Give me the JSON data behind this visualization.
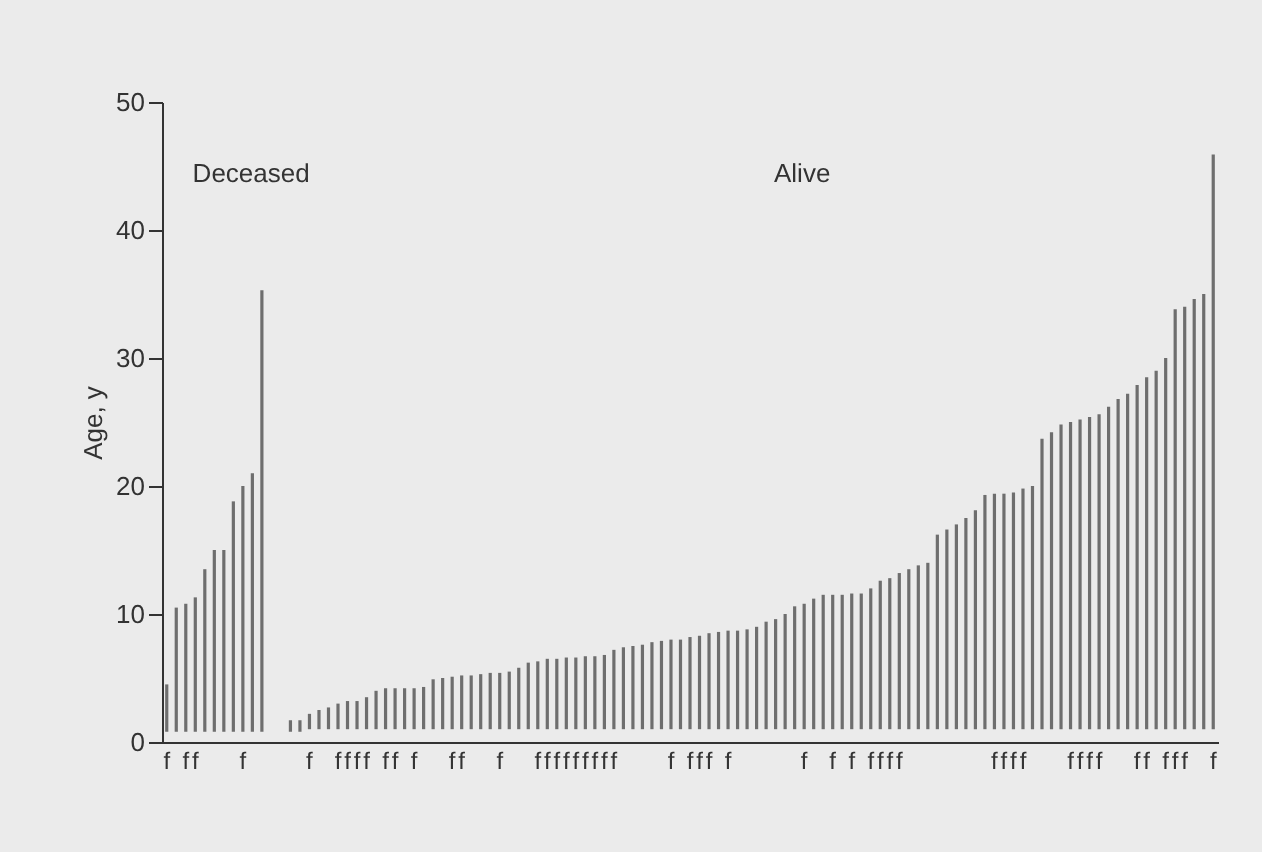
{
  "chart_data": {
    "type": "bar",
    "ylabel": "Age, y",
    "annotations": [
      "Deceased",
      "Alive"
    ],
    "categories": [
      "f",
      null,
      "f",
      "f",
      null,
      null,
      null,
      null,
      "f",
      null,
      null,
      null,
      null,
      null,
      null,
      "f",
      null,
      null,
      "f",
      "f",
      "f",
      "f",
      null,
      "f",
      "f",
      null,
      "f",
      null,
      null,
      null,
      "f",
      "f",
      null,
      null,
      null,
      "f",
      null,
      null,
      null,
      "f",
      "f",
      "f",
      "f",
      "f",
      "f",
      "f",
      "f",
      "f",
      null,
      null,
      null,
      null,
      null,
      "f",
      null,
      "f",
      "f",
      "f",
      null,
      "f",
      null,
      null,
      null,
      null,
      null,
      null,
      null,
      "f",
      null,
      null,
      "f",
      null,
      "f",
      null,
      "f",
      "f",
      "f",
      "f",
      null,
      null,
      null,
      null,
      null,
      null,
      null,
      null,
      null,
      "f",
      "f",
      "f",
      "f",
      null,
      null,
      null,
      null,
      "f",
      "f",
      "f",
      "f",
      null,
      null,
      null,
      "f",
      "f",
      null,
      "f",
      "f",
      "f",
      null,
      null,
      "f"
    ],
    "base": [
      0.8,
      0.8,
      0.8,
      0.8,
      0.8,
      0.8,
      0.8,
      0.8,
      0.8,
      0.8,
      0.8,
      null,
      null,
      0.8,
      0.8,
      1.0,
      1.0,
      1.0,
      1.0,
      1.0,
      1.0,
      1.0,
      1.0,
      1.0,
      1.0,
      1.0,
      1.0,
      1.0,
      1.0,
      1.0,
      1.0,
      1.0,
      1.0,
      1.0,
      1.0,
      1.0,
      1.0,
      1.0,
      1.0,
      1.0,
      1.0,
      1.0,
      1.0,
      1.0,
      1.0,
      1.0,
      1.0,
      1.0,
      1.0,
      1.0,
      1.0,
      1.0,
      1.0,
      1.0,
      1.0,
      1.0,
      1.0,
      1.0,
      1.0,
      1.0,
      1.0,
      1.0,
      1.0,
      1.0,
      1.0,
      1.0,
      1.0,
      1.0,
      1.0,
      1.0,
      1.0,
      1.0,
      1.0,
      1.0,
      1.0,
      1.0,
      1.0,
      1.0,
      1.0,
      1.0,
      1.0,
      1.0,
      1.0,
      1.0,
      1.0,
      1.0,
      1.0,
      1.0,
      1.0,
      1.0,
      1.0,
      1.0,
      1.0,
      1.0,
      1.0,
      1.0,
      1.0,
      1.0,
      1.0,
      1.0,
      1.0,
      1.0,
      1.0,
      1.0,
      1.0,
      1.0,
      1.0,
      1.0,
      1.0,
      1.0,
      1.0
    ],
    "values": [
      3.7,
      9.7,
      10.0,
      10.5,
      12.7,
      14.2,
      14.2,
      18.0,
      19.2,
      20.2,
      34.5,
      null,
      null,
      0.9,
      0.9,
      1.2,
      1.5,
      1.7,
      2.0,
      2.2,
      2.2,
      2.5,
      3.0,
      3.2,
      3.2,
      3.2,
      3.2,
      3.3,
      3.9,
      4.0,
      4.1,
      4.2,
      4.2,
      4.3,
      4.4,
      4.4,
      4.5,
      4.8,
      5.2,
      5.3,
      5.5,
      5.5,
      5.6,
      5.6,
      5.7,
      5.7,
      5.8,
      6.2,
      6.4,
      6.5,
      6.6,
      6.8,
      6.9,
      7.0,
      7.0,
      7.2,
      7.3,
      7.5,
      7.6,
      7.7,
      7.7,
      7.8,
      8.0,
      8.4,
      8.6,
      9.0,
      9.6,
      9.8,
      10.2,
      10.5,
      10.5,
      10.5,
      10.6,
      10.6,
      11.0,
      11.6,
      11.8,
      12.2,
      12.5,
      12.8,
      13.0,
      15.2,
      15.6,
      16.0,
      16.5,
      17.1,
      18.3,
      18.4,
      18.4,
      18.5,
      18.8,
      19.0,
      22.7,
      23.2,
      23.8,
      24.0,
      24.2,
      24.4,
      24.6,
      25.2,
      25.8,
      26.2,
      26.9,
      27.5,
      28.0,
      29.0,
      32.8,
      33.0,
      33.6,
      34.0,
      44.9
    ],
    "color": "#6e6e6e",
    "ylim": [
      0,
      50
    ],
    "yticks": [
      0,
      10,
      20,
      30,
      40,
      50
    ],
    "grid": false
  }
}
